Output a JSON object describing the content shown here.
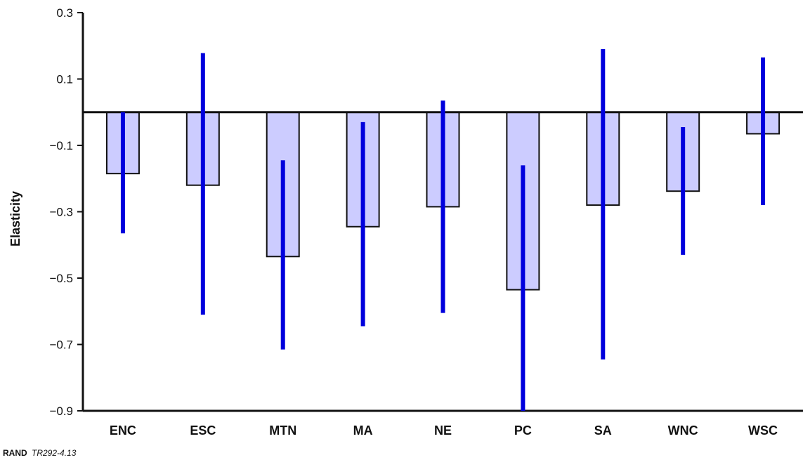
{
  "chart_data": {
    "type": "bar",
    "title": "",
    "xlabel": "",
    "ylabel": "Elasticity",
    "ylim": [
      -0.9,
      0.3
    ],
    "yticks": [
      0.3,
      0.1,
      -0.1,
      -0.3,
      -0.5,
      -0.7,
      -0.9
    ],
    "ytick_labels": [
      "0.3",
      "0.1",
      "−0.1",
      "−0.3",
      "−0.5",
      "−0.7",
      "−0.9"
    ],
    "categories": [
      "ENC",
      "ESC",
      "MTN",
      "MA",
      "NE",
      "PC",
      "SA",
      "WNC",
      "WSC"
    ],
    "values": [
      -0.185,
      -0.22,
      -0.435,
      -0.345,
      -0.285,
      -0.535,
      -0.28,
      -0.238,
      -0.065
    ],
    "error_bars": [
      {
        "low": -0.365,
        "high": 0.0
      },
      {
        "low": -0.61,
        "high": 0.178
      },
      {
        "low": -0.715,
        "high": -0.145
      },
      {
        "low": -0.645,
        "high": -0.03
      },
      {
        "low": -0.605,
        "high": 0.035
      },
      {
        "low": -0.9,
        "high": -0.16
      },
      {
        "low": -0.745,
        "high": 0.19
      },
      {
        "low": -0.43,
        "high": -0.045
      },
      {
        "low": -0.28,
        "high": 0.165
      }
    ],
    "zero_line": true,
    "grid": false,
    "colors": {
      "bar_fill": "#ccccff",
      "bar_stroke": "#111111",
      "error_bar": "#0000dd",
      "axis": "#111111"
    }
  },
  "footer": {
    "org": "RAND",
    "code": "TR292-4.13"
  }
}
